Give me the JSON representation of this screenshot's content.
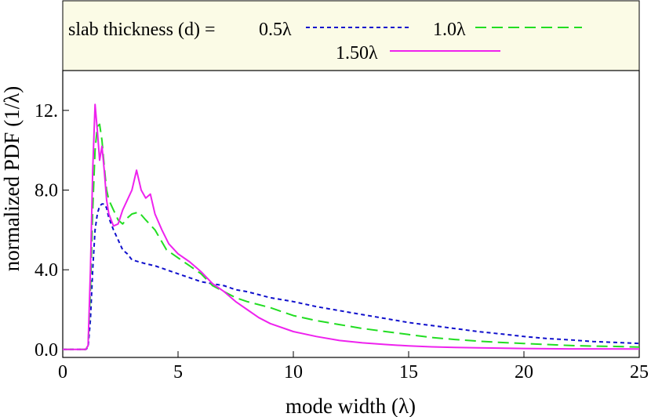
{
  "chart_data": {
    "type": "line",
    "title": "",
    "xlabel": "mode width (λ)",
    "ylabel": "normalized PDF (1/λ)",
    "xlim": [
      0,
      25
    ],
    "ylim": [
      -0.4,
      14.0
    ],
    "x_ticks": [
      0,
      5,
      10,
      15,
      20,
      25
    ],
    "x_tick_labels": [
      "0",
      "5",
      "10",
      "15",
      "20",
      "25"
    ],
    "y_ticks": [
      0,
      4,
      8,
      12
    ],
    "y_tick_labels": [
      "0.0",
      "4.0",
      "8.0",
      "12."
    ],
    "grid": false,
    "legend": {
      "prefix": "slab thickness (d) =",
      "placement": "top",
      "background": "#fbfbe6"
    },
    "series": [
      {
        "name": "0.5λ",
        "color": "#1010cc",
        "dash": "5,4",
        "points": [
          [
            0,
            0
          ],
          [
            1.0,
            0
          ],
          [
            1.1,
            0.1
          ],
          [
            1.2,
            1.5
          ],
          [
            1.3,
            4.0
          ],
          [
            1.4,
            6.0
          ],
          [
            1.5,
            6.8
          ],
          [
            1.6,
            7.2
          ],
          [
            1.7,
            7.3
          ],
          [
            1.8,
            7.3
          ],
          [
            1.9,
            7.1
          ],
          [
            2.0,
            6.6
          ],
          [
            2.2,
            6.0
          ],
          [
            2.4,
            5.5
          ],
          [
            2.6,
            5.0
          ],
          [
            2.8,
            4.8
          ],
          [
            3.0,
            4.5
          ],
          [
            3.3,
            4.4
          ],
          [
            3.6,
            4.3
          ],
          [
            4.0,
            4.2
          ],
          [
            4.5,
            4.0
          ],
          [
            5.0,
            3.8
          ],
          [
            5.5,
            3.6
          ],
          [
            6.0,
            3.4
          ],
          [
            6.5,
            3.3
          ],
          [
            7.0,
            3.2
          ],
          [
            7.5,
            3.0
          ],
          [
            8.0,
            2.9
          ],
          [
            9.0,
            2.6
          ],
          [
            10.0,
            2.4
          ],
          [
            11.0,
            2.15
          ],
          [
            12.0,
            1.95
          ],
          [
            13.0,
            1.75
          ],
          [
            14.0,
            1.55
          ],
          [
            15.0,
            1.35
          ],
          [
            16.0,
            1.2
          ],
          [
            17.0,
            1.05
          ],
          [
            18.0,
            0.9
          ],
          [
            19.0,
            0.78
          ],
          [
            20.0,
            0.65
          ],
          [
            21.0,
            0.55
          ],
          [
            22.0,
            0.48
          ],
          [
            23.0,
            0.4
          ],
          [
            24.0,
            0.35
          ],
          [
            25.0,
            0.3
          ]
        ]
      },
      {
        "name": "1.0λ",
        "color": "#22dd22",
        "dash": "14,7",
        "points": [
          [
            0,
            0
          ],
          [
            1.0,
            0
          ],
          [
            1.1,
            0.2
          ],
          [
            1.2,
            3.0
          ],
          [
            1.3,
            7.0
          ],
          [
            1.4,
            10.0
          ],
          [
            1.5,
            11.2
          ],
          [
            1.6,
            11.3
          ],
          [
            1.7,
            10.5
          ],
          [
            1.8,
            9.2
          ],
          [
            1.9,
            8.0
          ],
          [
            2.0,
            7.5
          ],
          [
            2.2,
            7.0
          ],
          [
            2.4,
            6.5
          ],
          [
            2.6,
            6.3
          ],
          [
            2.8,
            6.6
          ],
          [
            3.0,
            6.8
          ],
          [
            3.3,
            6.9
          ],
          [
            3.6,
            6.5
          ],
          [
            4.0,
            6.0
          ],
          [
            4.5,
            5.0
          ],
          [
            5.0,
            4.6
          ],
          [
            5.5,
            4.2
          ],
          [
            6.0,
            3.8
          ],
          [
            6.5,
            3.2
          ],
          [
            7.0,
            2.9
          ],
          [
            7.5,
            2.6
          ],
          [
            8.0,
            2.4
          ],
          [
            9.0,
            2.1
          ],
          [
            10.0,
            1.7
          ],
          [
            11.0,
            1.45
          ],
          [
            12.0,
            1.25
          ],
          [
            13.0,
            1.05
          ],
          [
            14.0,
            0.9
          ],
          [
            15.0,
            0.75
          ],
          [
            16.0,
            0.6
          ],
          [
            17.0,
            0.5
          ],
          [
            18.0,
            0.42
          ],
          [
            19.0,
            0.35
          ],
          [
            20.0,
            0.3
          ],
          [
            21.0,
            0.25
          ],
          [
            22.0,
            0.2
          ],
          [
            23.0,
            0.17
          ],
          [
            24.0,
            0.15
          ],
          [
            25.0,
            0.12
          ]
        ]
      },
      {
        "name": "1.50λ",
        "color": "#ee22ee",
        "dash": "",
        "points": [
          [
            0,
            0
          ],
          [
            1.0,
            0
          ],
          [
            1.1,
            0.2
          ],
          [
            1.2,
            4.0
          ],
          [
            1.3,
            9.0
          ],
          [
            1.4,
            12.3
          ],
          [
            1.5,
            11.0
          ],
          [
            1.6,
            9.5
          ],
          [
            1.7,
            10.2
          ],
          [
            1.8,
            9.0
          ],
          [
            1.9,
            7.5
          ],
          [
            2.0,
            6.8
          ],
          [
            2.2,
            6.2
          ],
          [
            2.4,
            6.3
          ],
          [
            2.6,
            7.0
          ],
          [
            2.8,
            7.5
          ],
          [
            3.0,
            8.0
          ],
          [
            3.2,
            9.0
          ],
          [
            3.4,
            8.0
          ],
          [
            3.6,
            7.6
          ],
          [
            3.8,
            7.8
          ],
          [
            4.0,
            6.8
          ],
          [
            4.3,
            6.0
          ],
          [
            4.6,
            5.3
          ],
          [
            5.0,
            4.8
          ],
          [
            5.5,
            4.4
          ],
          [
            6.0,
            3.9
          ],
          [
            6.5,
            3.3
          ],
          [
            7.0,
            2.9
          ],
          [
            7.5,
            2.4
          ],
          [
            8.0,
            2.0
          ],
          [
            8.5,
            1.6
          ],
          [
            9.0,
            1.3
          ],
          [
            10.0,
            0.9
          ],
          [
            11.0,
            0.65
          ],
          [
            12.0,
            0.45
          ],
          [
            13.0,
            0.33
          ],
          [
            14.0,
            0.25
          ],
          [
            15.0,
            0.18
          ],
          [
            16.0,
            0.13
          ],
          [
            17.0,
            0.1
          ],
          [
            18.0,
            0.08
          ],
          [
            20.0,
            0.05
          ],
          [
            22.0,
            0.03
          ],
          [
            25.0,
            0.02
          ]
        ]
      }
    ]
  }
}
